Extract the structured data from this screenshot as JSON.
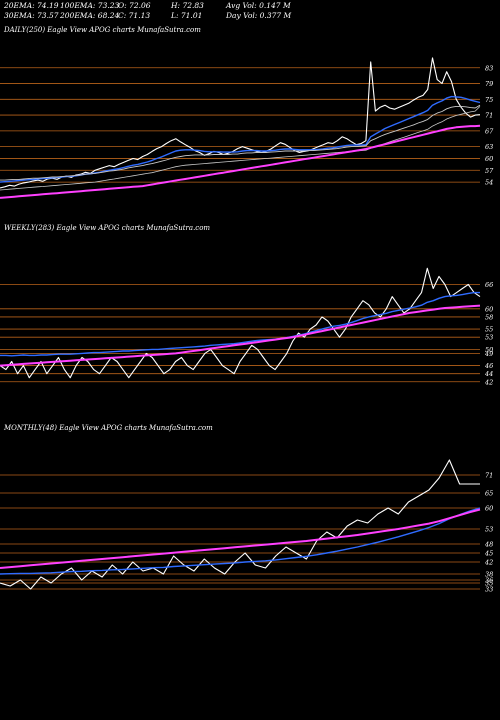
{
  "stats": [
    [
      "20EMA: 74.19",
      "100EMA: 73.23",
      "O: 72.06",
      "H: 72.83",
      "Avg Vol: 0.147 M"
    ],
    [
      "30EMA: 73.57",
      "200EMA: 68.24",
      "C: 71.13",
      "L: 71.01",
      "Day Vol: 0.377 M"
    ]
  ],
  "colors": {
    "price": "#ffffff",
    "ema_fast": "#2f6bff",
    "ema_slow": "#ff40ff",
    "level": "#b8621a",
    "ema_other": "#c8c8c8"
  },
  "chart_data": [
    {
      "type": "line",
      "title": "DAILY(250) Eagle  View  APOG charts MunafaSutra.com",
      "ylim": [
        52,
        87
      ],
      "yticks": [
        83,
        79,
        75,
        71,
        67,
        63,
        60,
        57,
        54
      ],
      "levels": [
        83,
        79,
        75,
        71,
        67,
        63,
        60,
        57,
        54
      ],
      "series": [
        {
          "role": "price",
          "values": [
            52.5,
            52.8,
            53.2,
            53.0,
            53.5,
            53.8,
            54.0,
            54.3,
            54.5,
            54.2,
            54.8,
            55.0,
            54.7,
            55.3,
            55.5,
            55.2,
            55.8,
            56.0,
            56.5,
            56.2,
            57.0,
            57.4,
            57.8,
            58.2,
            57.9,
            58.5,
            59.0,
            59.5,
            60.0,
            59.7,
            60.5,
            61.0,
            61.8,
            62.5,
            63.0,
            63.8,
            64.5,
            65.0,
            64.2,
            63.5,
            62.8,
            62.0,
            61.5,
            60.8,
            61.2,
            61.8,
            61.5,
            61.0,
            61.3,
            61.8,
            62.5,
            63.0,
            62.6,
            62.2,
            61.8,
            61.5,
            61.8,
            62.4,
            63.2,
            64.0,
            63.6,
            62.8,
            62.0,
            61.5,
            61.8,
            62.0,
            62.5,
            63.0,
            63.5,
            64.0,
            63.8,
            64.5,
            65.5,
            65.0,
            64.2,
            63.5,
            63.8,
            64.5,
            84.5,
            72.0,
            73.0,
            73.5,
            72.8,
            72.5,
            73.0,
            73.5,
            74.0,
            74.8,
            75.5,
            76.0,
            77.5,
            85.5,
            80.0,
            79.0,
            82.0,
            79.5,
            75.0,
            73.0,
            71.5,
            70.5,
            71.0,
            71.1
          ]
        },
        {
          "role": "ema20",
          "values": [
            54.0,
            54.1,
            54.2,
            54.3,
            54.4,
            54.5,
            54.6,
            54.7,
            54.8,
            54.9,
            55.0,
            55.1,
            55.2,
            55.3,
            55.4,
            55.5,
            55.6,
            55.8,
            56.0,
            56.1,
            56.3,
            56.5,
            56.8,
            57.0,
            57.2,
            57.4,
            57.7,
            58.0,
            58.3,
            58.5,
            58.8,
            59.1,
            59.5,
            60.0,
            60.4,
            60.9,
            61.4,
            61.9,
            62.1,
            62.2,
            62.2,
            62.1,
            62.0,
            61.8,
            61.7,
            61.7,
            61.7,
            61.6,
            61.6,
            61.6,
            61.7,
            61.9,
            62.0,
            62.0,
            62.0,
            61.9,
            61.9,
            62.0,
            62.1,
            62.3,
            62.4,
            62.4,
            62.3,
            62.2,
            62.2,
            62.2,
            62.2,
            62.3,
            62.4,
            62.6,
            62.7,
            62.9,
            63.1,
            63.3,
            63.4,
            63.4,
            63.4,
            63.5,
            65.5,
            66.2,
            66.9,
            67.6,
            68.1,
            68.6,
            69.1,
            69.6,
            70.1,
            70.6,
            71.1,
            71.6,
            72.2,
            73.5,
            74.1,
            74.6,
            75.3,
            75.7,
            75.6,
            75.5,
            75.2,
            74.8,
            74.5,
            74.2
          ]
        },
        {
          "role": "ema30",
          "values": [
            54.5,
            54.5,
            54.6,
            54.7,
            54.7,
            54.8,
            54.9,
            55.0,
            55.0,
            55.1,
            55.2,
            55.3,
            55.3,
            55.4,
            55.5,
            55.6,
            55.7,
            55.8,
            56.0,
            56.1,
            56.2,
            56.4,
            56.6,
            56.8,
            56.9,
            57.1,
            57.3,
            57.6,
            57.8,
            58.0,
            58.2,
            58.5,
            58.7,
            59.0,
            59.3,
            59.6,
            60.0,
            60.3,
            60.5,
            60.7,
            60.8,
            60.9,
            60.9,
            60.9,
            60.9,
            61.0,
            61.0,
            61.0,
            61.0,
            61.1,
            61.1,
            61.3,
            61.4,
            61.4,
            61.5,
            61.5,
            61.5,
            61.6,
            61.7,
            61.8,
            61.9,
            61.9,
            61.9,
            61.9,
            61.9,
            62.0,
            62.0,
            62.1,
            62.2,
            62.3,
            62.4,
            62.5,
            62.7,
            62.9,
            63.0,
            63.0,
            63.1,
            63.2,
            64.5,
            65.0,
            65.6,
            66.1,
            66.5,
            66.9,
            67.3,
            67.7,
            68.1,
            68.5,
            69.0,
            69.4,
            69.9,
            70.9,
            71.5,
            71.9,
            72.6,
            73.0,
            73.2,
            73.2,
            73.1,
            72.9,
            72.8,
            73.5
          ]
        },
        {
          "role": "ema100",
          "values": [
            52.0,
            52.1,
            52.2,
            52.3,
            52.4,
            52.5,
            52.6,
            52.7,
            52.8,
            52.9,
            53.0,
            53.1,
            53.2,
            53.3,
            53.4,
            53.5,
            53.6,
            53.7,
            53.8,
            53.9,
            54.0,
            54.2,
            54.4,
            54.6,
            54.8,
            55.0,
            55.2,
            55.4,
            55.6,
            55.8,
            56.0,
            56.2,
            56.4,
            56.7,
            57.0,
            57.3,
            57.6,
            57.9,
            58.1,
            58.3,
            58.4,
            58.5,
            58.6,
            58.7,
            58.8,
            58.9,
            59.0,
            59.1,
            59.2,
            59.3,
            59.4,
            59.5,
            59.6,
            59.7,
            59.8,
            59.9,
            60.0,
            60.1,
            60.2,
            60.3,
            60.4,
            60.5,
            60.6,
            60.7,
            60.8,
            60.9,
            61.0,
            61.1,
            61.2,
            61.3,
            61.4,
            61.5,
            61.6,
            61.7,
            61.8,
            61.9,
            62.0,
            62.1,
            62.6,
            63.0,
            63.4,
            63.8,
            64.2,
            64.6,
            65.0,
            65.4,
            65.8,
            66.2,
            66.6,
            67.0,
            67.4,
            68.2,
            68.8,
            69.3,
            70.0,
            70.5,
            70.9,
            71.2,
            71.5,
            71.8,
            72.0,
            73.2
          ]
        },
        {
          "role": "ema200",
          "values": [
            50.0,
            50.1,
            50.2,
            50.3,
            50.4,
            50.5,
            50.6,
            50.7,
            50.8,
            50.9,
            51.0,
            51.1,
            51.2,
            51.3,
            51.4,
            51.5,
            51.6,
            51.7,
            51.8,
            51.9,
            52.0,
            52.1,
            52.2,
            52.3,
            52.4,
            52.5,
            52.6,
            52.7,
            52.8,
            52.9,
            53.0,
            53.2,
            53.4,
            53.6,
            53.8,
            54.0,
            54.2,
            54.4,
            54.6,
            54.8,
            55.0,
            55.2,
            55.4,
            55.6,
            55.8,
            56.0,
            56.2,
            56.4,
            56.6,
            56.8,
            57.0,
            57.2,
            57.4,
            57.6,
            57.8,
            58.0,
            58.2,
            58.4,
            58.6,
            58.8,
            59.0,
            59.2,
            59.4,
            59.6,
            59.8,
            60.0,
            60.2,
            60.4,
            60.6,
            60.8,
            61.0,
            61.2,
            61.4,
            61.6,
            61.8,
            62.0,
            62.2,
            62.4,
            62.7,
            63.0,
            63.3,
            63.6,
            63.9,
            64.2,
            64.5,
            64.8,
            65.1,
            65.4,
            65.7,
            66.0,
            66.3,
            66.6,
            66.9,
            67.2,
            67.5,
            67.7,
            67.9,
            68.0,
            68.1,
            68.2,
            68.2,
            68.3
          ]
        }
      ]
    },
    {
      "type": "line",
      "title": "WEEKLY(283) Eagle  View  APOG charts MunafaSutra.com",
      "ylim": [
        38,
        75
      ],
      "yticks": [
        66,
        60,
        58,
        55,
        53,
        50,
        49,
        46,
        44,
        42
      ],
      "levels": [
        66,
        60,
        58,
        55,
        53,
        50,
        49,
        46,
        44,
        42
      ],
      "series": [
        {
          "role": "price",
          "values": [
            46,
            45,
            47,
            44,
            46,
            43,
            45,
            47,
            44,
            46,
            48,
            45,
            43,
            46,
            48,
            47,
            45,
            44,
            46,
            48,
            47,
            45,
            43,
            45,
            47,
            49,
            48,
            46,
            44,
            45,
            47,
            48,
            46,
            45,
            47,
            49,
            50,
            48,
            46,
            45,
            44,
            47,
            49,
            51,
            50,
            48,
            46,
            45,
            47,
            49,
            52,
            54,
            53,
            55,
            56,
            58,
            57,
            55,
            53,
            55,
            58,
            60,
            62,
            61,
            59,
            58,
            60,
            63,
            61,
            59,
            60,
            62,
            64,
            70,
            65,
            68,
            66,
            63,
            64,
            65,
            66,
            64,
            63
          ]
        },
        {
          "role": "ema_fast",
          "values": [
            48.5,
            48.5,
            48.4,
            48.5,
            48.6,
            48.5,
            48.5,
            48.6,
            48.6,
            48.7,
            48.8,
            48.8,
            48.8,
            48.9,
            49.0,
            49.1,
            49.2,
            49.2,
            49.3,
            49.4,
            49.5,
            49.6,
            49.6,
            49.7,
            49.8,
            49.9,
            50.0,
            50.0,
            50.1,
            50.2,
            50.3,
            50.4,
            50.5,
            50.6,
            50.7,
            50.8,
            51.0,
            51.1,
            51.2,
            51.3,
            51.4,
            51.6,
            51.8,
            52.0,
            52.2,
            52.3,
            52.4,
            52.5,
            52.7,
            52.9,
            53.2,
            53.5,
            53.8,
            54.2,
            54.6,
            55.0,
            55.4,
            55.7,
            55.9,
            56.2,
            56.6,
            57.1,
            57.6,
            58.0,
            58.3,
            58.6,
            58.9,
            59.3,
            59.6,
            59.9,
            60.2,
            60.5,
            60.9,
            61.6,
            62.0,
            62.6,
            63.0,
            63.2,
            63.3,
            63.5,
            63.8,
            64.0,
            64.0
          ]
        },
        {
          "role": "ema_slow",
          "values": [
            46.0,
            46.1,
            46.2,
            46.3,
            46.4,
            46.5,
            46.6,
            46.7,
            46.8,
            46.9,
            47.0,
            47.1,
            47.2,
            47.3,
            47.4,
            47.5,
            47.6,
            47.7,
            47.8,
            47.9,
            48.0,
            48.1,
            48.2,
            48.3,
            48.4,
            48.5,
            48.6,
            48.7,
            48.8,
            48.9,
            49.0,
            49.2,
            49.4,
            49.6,
            49.8,
            50.0,
            50.2,
            50.4,
            50.6,
            50.8,
            51.0,
            51.2,
            51.4,
            51.6,
            51.8,
            52.0,
            52.2,
            52.4,
            52.6,
            52.8,
            53.0,
            53.3,
            53.6,
            53.9,
            54.2,
            54.5,
            54.8,
            55.1,
            55.4,
            55.7,
            56.0,
            56.3,
            56.6,
            56.9,
            57.2,
            57.5,
            57.8,
            58.1,
            58.4,
            58.7,
            59.0,
            59.2,
            59.4,
            59.6,
            59.8,
            60.0,
            60.2,
            60.3,
            60.4,
            60.5,
            60.6,
            60.7,
            60.8
          ]
        }
      ]
    },
    {
      "type": "line",
      "title": "MONTHLY(48) Eagle  View  APOG charts MunafaSutra.com",
      "ylim": [
        30,
        80
      ],
      "yticks": [
        71,
        65,
        60,
        53,
        48,
        45,
        42,
        38,
        36,
        35,
        33
      ],
      "levels": [
        71,
        65,
        60,
        53,
        48,
        45,
        42,
        38,
        36,
        35,
        33
      ],
      "series": [
        {
          "role": "price",
          "values": [
            35,
            34,
            36,
            33,
            37,
            35,
            38,
            40,
            36,
            39,
            37,
            41,
            38,
            42,
            39,
            40,
            38,
            44,
            41,
            39,
            43,
            40,
            38,
            42,
            45,
            41,
            40,
            44,
            47,
            45,
            43,
            49,
            52,
            50,
            54,
            56,
            55,
            58,
            60,
            58,
            62,
            64,
            66,
            70,
            76,
            68,
            68,
            68
          ]
        },
        {
          "role": "ema_fast",
          "values": [
            38.0,
            38.1,
            38.2,
            38.2,
            38.3,
            38.4,
            38.6,
            38.8,
            38.9,
            39.1,
            39.2,
            39.4,
            39.5,
            39.7,
            39.9,
            40.1,
            40.2,
            40.5,
            40.7,
            40.9,
            41.1,
            41.3,
            41.5,
            41.7,
            42.0,
            42.2,
            42.4,
            42.7,
            43.1,
            43.5,
            43.9,
            44.4,
            45.0,
            45.6,
            46.3,
            47.0,
            47.8,
            48.6,
            49.5,
            50.4,
            51.4,
            52.4,
            53.5,
            54.8,
            56.4,
            57.8,
            59.0,
            60.0
          ]
        },
        {
          "role": "ema_slow",
          "values": [
            40.0,
            40.3,
            40.6,
            40.9,
            41.2,
            41.5,
            41.8,
            42.1,
            42.4,
            42.7,
            43.0,
            43.3,
            43.6,
            43.9,
            44.2,
            44.5,
            44.8,
            45.1,
            45.4,
            45.7,
            46.0,
            46.3,
            46.6,
            46.9,
            47.2,
            47.5,
            47.8,
            48.1,
            48.4,
            48.7,
            49.0,
            49.4,
            49.8,
            50.2,
            50.6,
            51.0,
            51.5,
            52.0,
            52.5,
            53.0,
            53.6,
            54.2,
            54.8,
            55.6,
            56.6,
            57.6,
            58.6,
            59.5
          ]
        }
      ]
    }
  ]
}
